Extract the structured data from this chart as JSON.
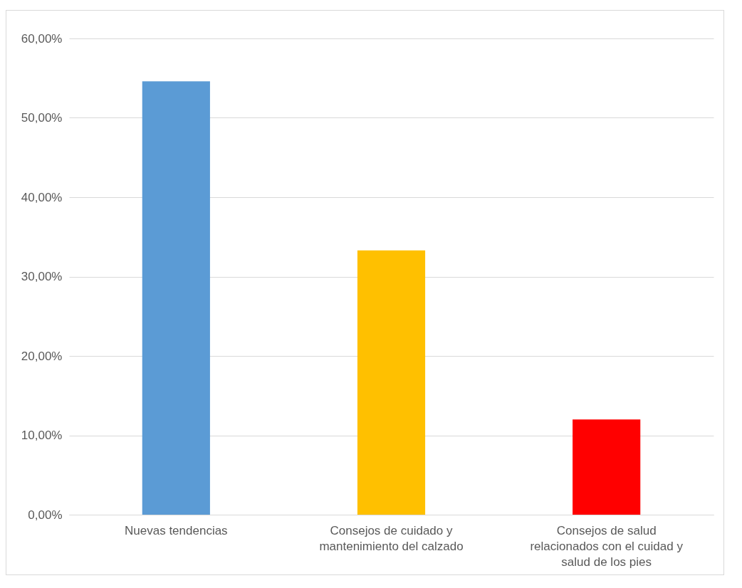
{
  "chart_data": {
    "type": "bar",
    "categories": [
      "Nuevas tendencias",
      "Consejos de cuidado y mantenimiento del calzado",
      "Consejos de salud relacionados con el cuidad y salud de los pies"
    ],
    "values": [
      54.6,
      33.3,
      12.0
    ],
    "colors": [
      "#5b9bd5",
      "#ffc000",
      "#ff0000"
    ],
    "ylim": [
      0,
      60
    ],
    "yticks": [
      {
        "value": 0,
        "label": "0,00%"
      },
      {
        "value": 10,
        "label": "10,00%"
      },
      {
        "value": 20,
        "label": "20,00%"
      },
      {
        "value": 30,
        "label": "30,00%"
      },
      {
        "value": 40,
        "label": "40,00%"
      },
      {
        "value": 50,
        "label": "50,00%"
      },
      {
        "value": 60,
        "label": "60,00%"
      }
    ],
    "grid": "y"
  }
}
